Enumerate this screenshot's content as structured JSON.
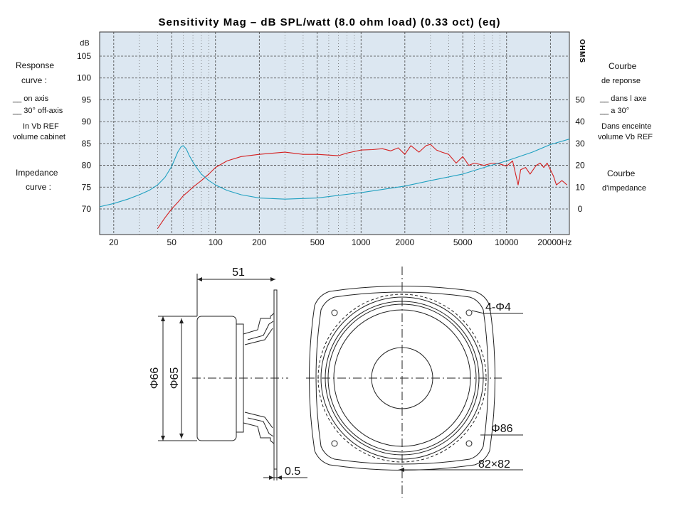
{
  "title": "Sensitivity Mag – dB SPL/watt (8.0 ohm load) (0.33 oct) (eq)",
  "left_legend": {
    "response_heading_1": "Response",
    "response_heading_2": "curve :",
    "on_axis": "__ on axis",
    "off_axis": "__ 30° off-axis",
    "cabinet_1": "In Vb REF",
    "cabinet_2": "volume cabinet",
    "impedance_heading_1": "Impedance",
    "impedance_heading_2": "curve :"
  },
  "right_legend": {
    "courbe_1": "Courbe",
    "courbe_2": "de reponse",
    "dans_axe": "__ dans l axe",
    "a_30": "__ a 30°",
    "enceinte_1": "Dans enceinte",
    "enceinte_2": "volume  Vb REF",
    "imp_1": "Courbe",
    "imp_2": "d'impedance"
  },
  "right_axis_title": "OHMS",
  "dims": {
    "depth": "51",
    "diam_outer": "Φ66",
    "diam_inner": "Φ65",
    "flange": "0.5",
    "holes": "4-Φ4",
    "circle": "Φ86",
    "square": "82×82"
  },
  "colors": {
    "plot_bg": "#dce7f1",
    "response": "#d42020",
    "impedance": "#1fa0c0"
  },
  "chart_data": {
    "type": "line",
    "xscale": "log",
    "xlim": [
      16,
      27000
    ],
    "xlabel": "Hz",
    "x_ticks": [
      20,
      50,
      100,
      200,
      500,
      1000,
      2000,
      5000,
      10000,
      20000
    ],
    "x_tick_labels": [
      "20",
      "50",
      "100",
      "200",
      "500",
      "1000",
      "2000",
      "5000",
      "10000",
      "20000Hz"
    ],
    "ylabel": "dB",
    "ylim": [
      65,
      110
    ],
    "y_ticks": [
      70,
      75,
      80,
      85,
      90,
      95,
      100,
      105
    ],
    "y_tick_labels": [
      "70",
      "75",
      "80",
      "85",
      "90",
      "95",
      "100",
      "105"
    ],
    "y2label": "OHMS",
    "y2_ticks": [
      0,
      10,
      20,
      30,
      40,
      50
    ],
    "y2_tick_labels": [
      "0",
      "10",
      "20",
      "30",
      "40",
      "50"
    ],
    "y2_map": {
      "ohm0_db": 70,
      "db_per_ohm": 0.5
    },
    "series": [
      {
        "name": "Response (on axis)",
        "axis": "left",
        "x": [
          40,
          45,
          50,
          55,
          60,
          65,
          70,
          80,
          90,
          100,
          120,
          150,
          200,
          250,
          300,
          400,
          500,
          700,
          800,
          1000,
          1200,
          1400,
          1600,
          1800,
          2000,
          2200,
          2500,
          2800,
          3000,
          3300,
          3600,
          4000,
          4500,
          5000,
          5500,
          6000,
          7000,
          8000,
          9000,
          10000,
          11000,
          12000,
          12500,
          13500,
          14500,
          16000,
          17000,
          18000,
          19000,
          20000,
          21000,
          22000,
          24000,
          25000,
          26000
        ],
        "values": [
          65.5,
          68,
          70,
          71.5,
          73,
          74,
          75,
          76.5,
          78,
          79.5,
          81,
          82,
          82.5,
          82.8,
          83,
          82.5,
          82.5,
          82.2,
          82.8,
          83.5,
          83.6,
          83.8,
          83.3,
          84,
          82.5,
          84.5,
          83,
          84.5,
          84.8,
          83.5,
          83,
          82.5,
          80.5,
          82,
          80,
          80.5,
          80,
          80.5,
          80.3,
          79.8,
          81,
          75.5,
          79,
          79.5,
          78,
          80,
          80.5,
          79.5,
          80.5,
          79,
          77.5,
          75.5,
          76.5,
          76,
          75.5
        ]
      },
      {
        "name": "Impedance",
        "axis": "right",
        "x": [
          16,
          20,
          25,
          30,
          35,
          40,
          45,
          50,
          55,
          58,
          60,
          63,
          66,
          70,
          75,
          80,
          90,
          100,
          120,
          150,
          200,
          300,
          500,
          1000,
          2000,
          3000,
          5000,
          7000,
          10000,
          15000,
          20000,
          27000
        ],
        "values": [
          1,
          2.5,
          4.5,
          6.5,
          8.5,
          11,
          14.5,
          19.5,
          26,
          28.5,
          29,
          27.5,
          24.5,
          21.5,
          18.5,
          16,
          13,
          11,
          8.5,
          6.5,
          5,
          4.5,
          5,
          7.5,
          10.5,
          13,
          16,
          19,
          22,
          26,
          29.5,
          32
        ]
      }
    ]
  }
}
